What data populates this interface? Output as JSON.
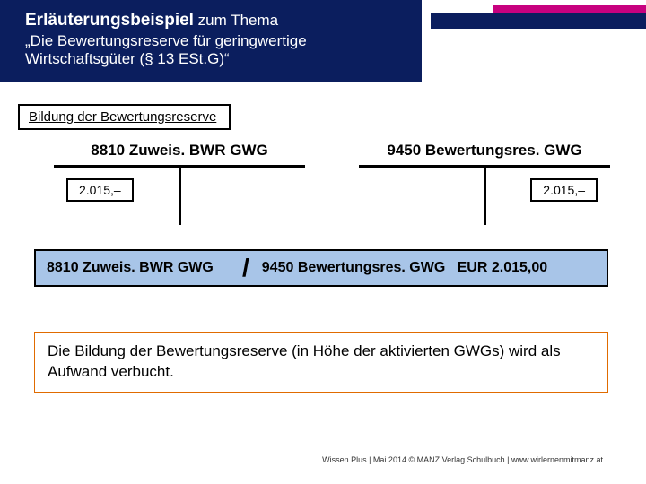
{
  "header": {
    "title_bold": "Erläuterungsbeispiel",
    "title_thin": " zum Thema",
    "subtitle": "„Die Bewertungsreserve für geringwertige Wirtschaftsgüter (§ 13 ESt.G)“"
  },
  "section_label": "Bildung der Bewertungsreserve",
  "taccounts": {
    "left": {
      "title": "8810 Zuweis. BWR GWG",
      "value": "2.015,–"
    },
    "right": {
      "title": "9450 Bewertungsres. GWG",
      "value": "2.015,–"
    }
  },
  "entry": {
    "debit": "8810 Zuweis. BWR GWG",
    "credit": "9450 Bewertungsres. GWG   EUR 2.015,00"
  },
  "note": "Die Bildung der Bewertungsreserve (in Höhe der aktivierten GWGs) wird als Aufwand verbucht.",
  "footer": "Wissen.Plus | Mai 2014 © MANZ Verlag Schulbuch | www.wirlernenmitmanz.at",
  "colors": {
    "navy": "#0b1e5e",
    "magenta": "#c7017f",
    "entry_bg": "#a8c5e8",
    "note_border": "#e06b00"
  }
}
